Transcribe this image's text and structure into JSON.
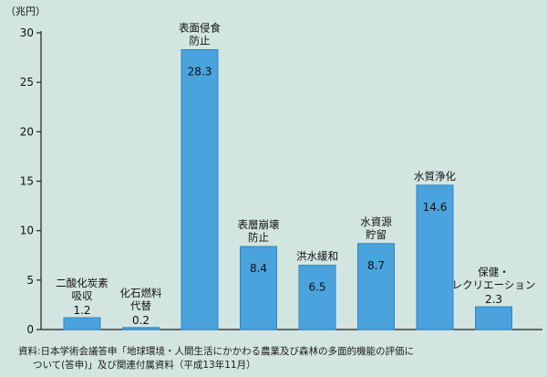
{
  "chart_data": {
    "type": "bar",
    "ylabel": "（兆円）",
    "ylim": [
      0,
      30
    ],
    "yticks": [
      0,
      5,
      10,
      15,
      20,
      25,
      30
    ],
    "grid": false,
    "categories": [
      [
        "二酸化炭素",
        "吸収"
      ],
      [
        "化石燃料",
        "代替"
      ],
      [
        "表面侵食",
        "防止"
      ],
      [
        "表層崩壊",
        "防止"
      ],
      [
        "洪水緩和"
      ],
      [
        "水資源",
        "貯留"
      ],
      [
        "水質浄化"
      ],
      [
        "保健・",
        "レクリエーション"
      ]
    ],
    "values": [
      1.2,
      0.2,
      28.3,
      8.4,
      6.5,
      8.7,
      14.6,
      2.3
    ],
    "value_labels": [
      "1.2",
      "0.2",
      "28.3",
      "8.4",
      "6.5",
      "8.7",
      "14.6",
      "2.3"
    ],
    "colors": {
      "bar": "#4aa3dd",
      "bar_edge": "#2f86c4",
      "axis": "#222222"
    }
  },
  "source": {
    "line1": "資料:日本学術会議答申「地球環境・人間生活にかかわる農業及び森林の多面的機能の評価に",
    "line2": "ついて(答申)」及び関連付属資料（平成13年11月）"
  }
}
